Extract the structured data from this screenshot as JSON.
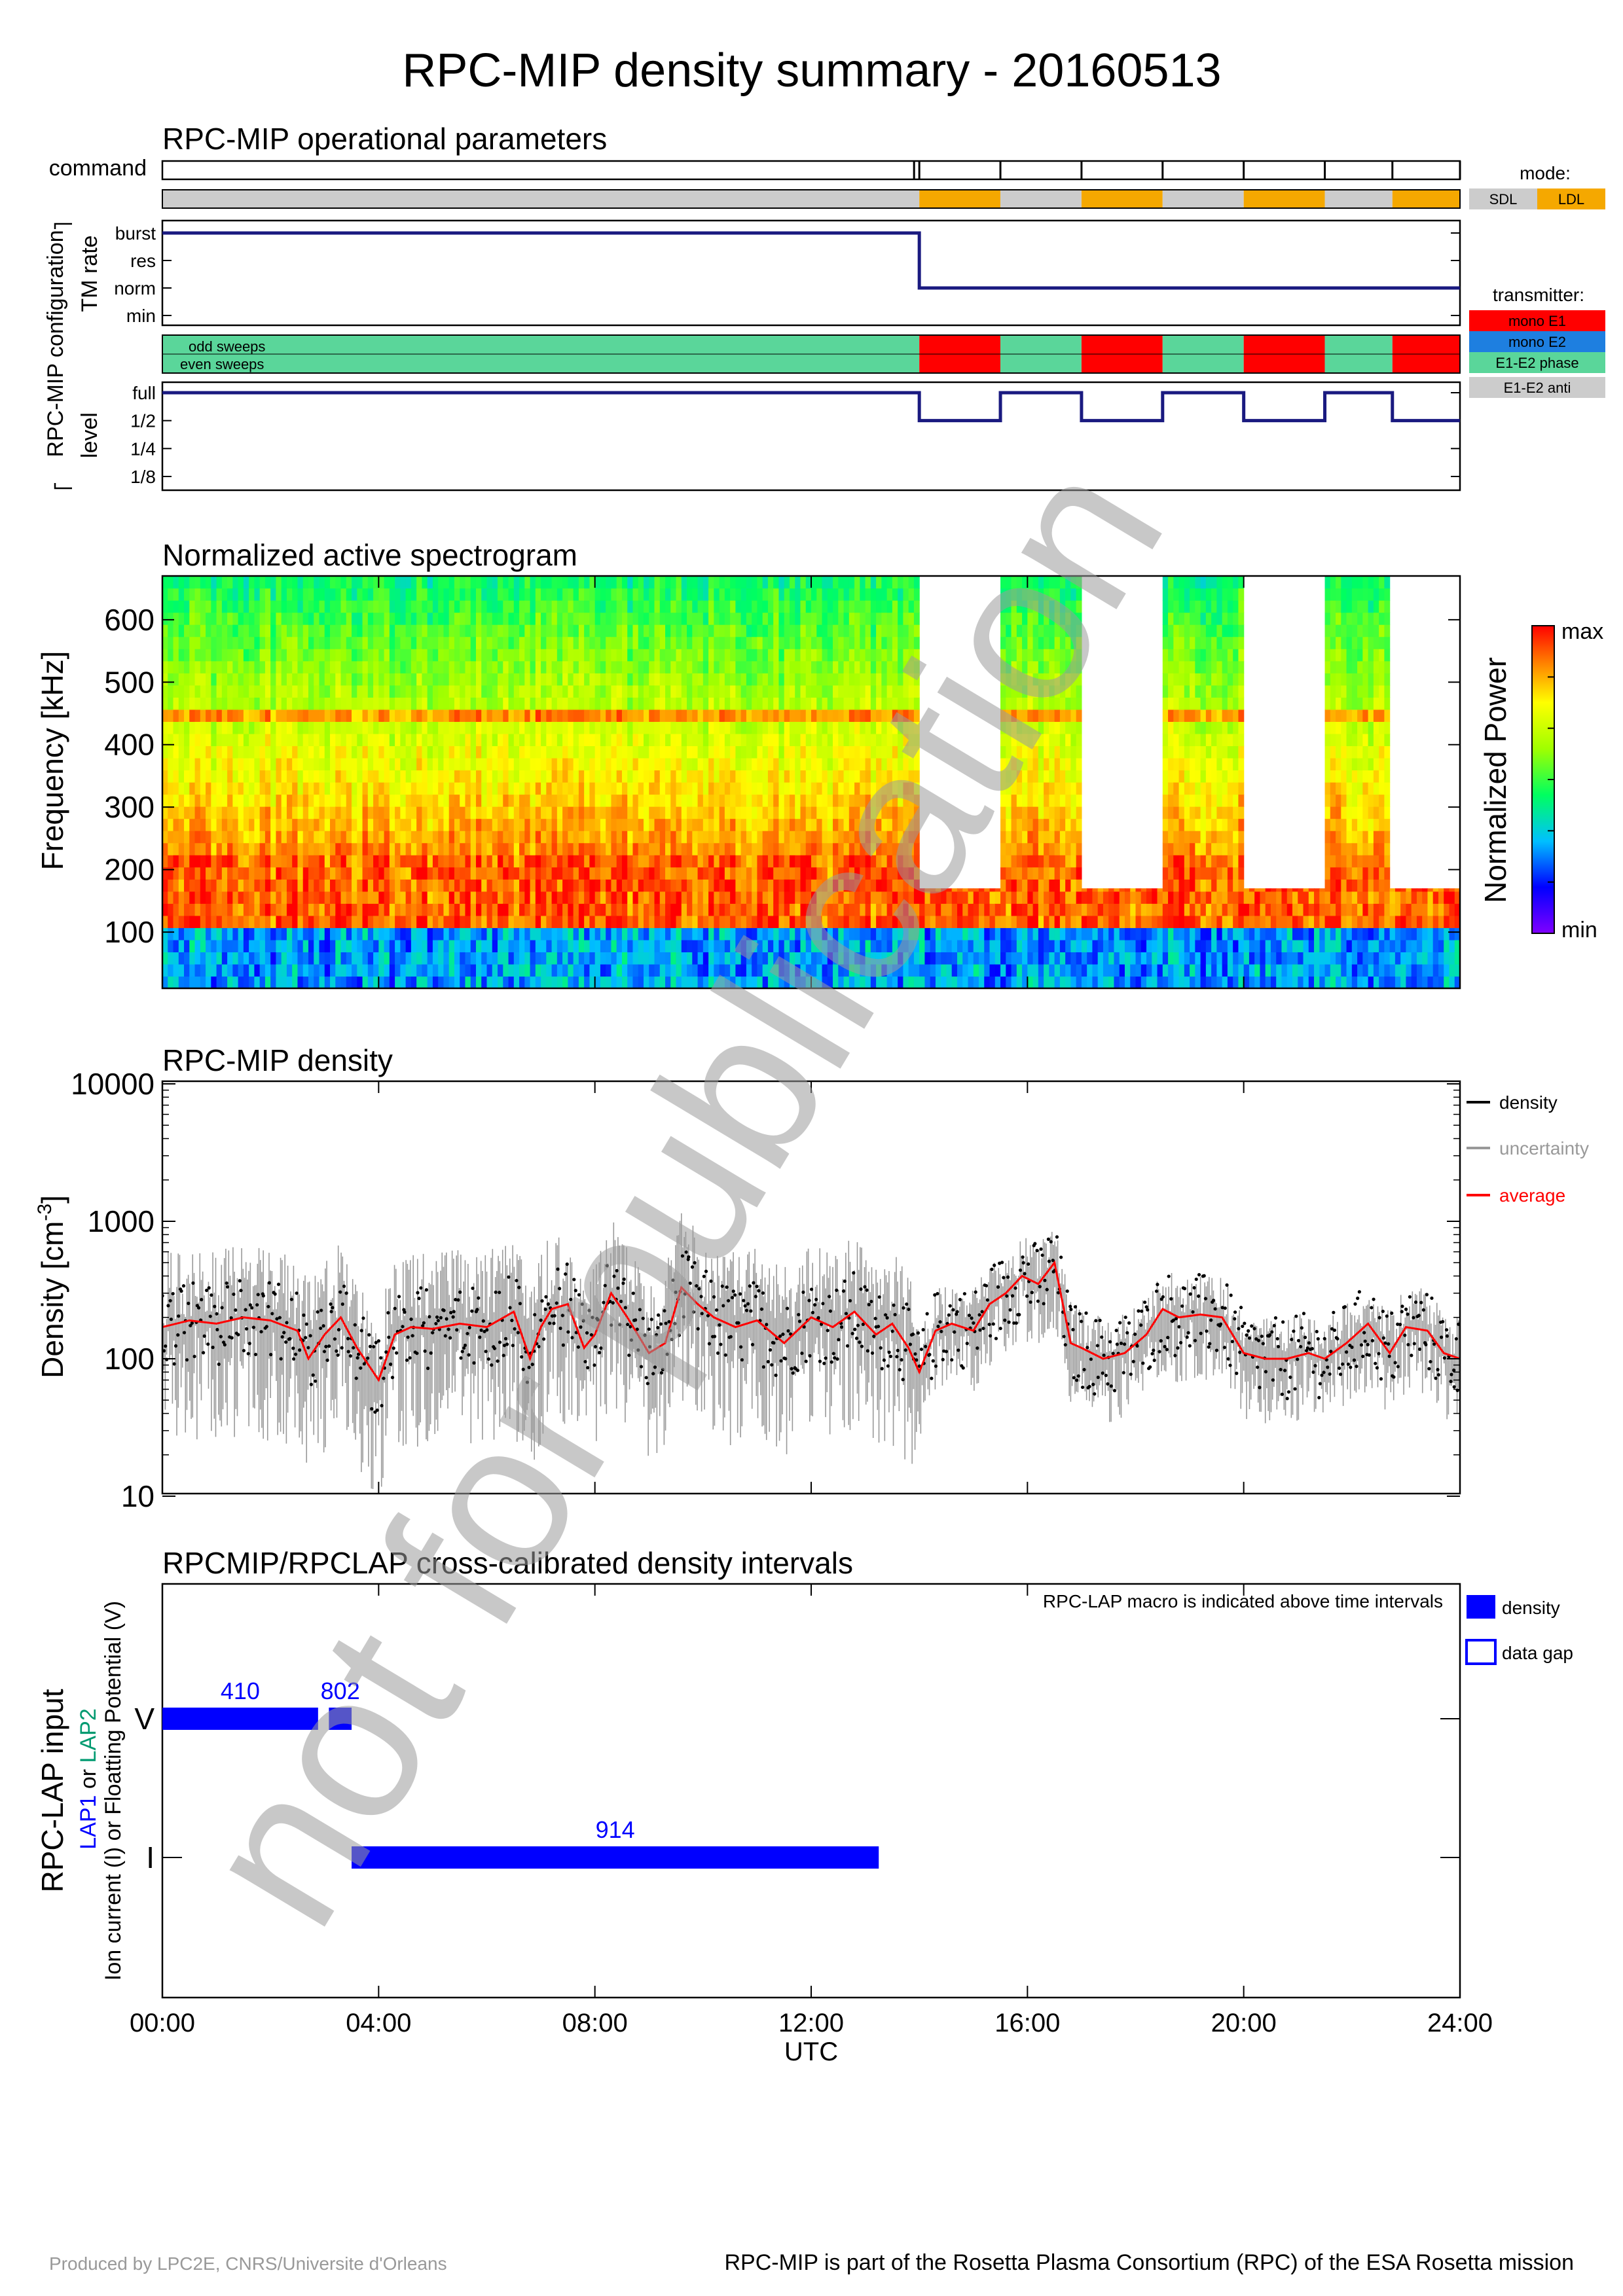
{
  "page_title": "RPC-MIP density summary - 20160513",
  "footer": {
    "left": "Produced by LPC2E, CNRS/Universite d'Orleans",
    "right": "RPC-MIP is part of the Rosetta Plasma Consortium (RPC) of the ESA Rosetta mission"
  },
  "watermark": "not for publication",
  "colors": {
    "navy": "#1a1a80",
    "orange": "#f5a800",
    "gray": "#cccccc",
    "red": "#ff0000",
    "blue": "#0000ff",
    "green": "#5ad69a",
    "lap2": "#009a70"
  },
  "chart_data": [
    {
      "type": "timeline",
      "title": "RPC-MIP operational parameters",
      "group_label": "RPC-MIP configuration",
      "command_label": "command",
      "command_ticks_h": [
        14.0,
        15.5,
        17.0,
        18.5,
        20.0,
        21.5,
        22.75,
        24.0
      ],
      "mode": {
        "legend_title": "mode:",
        "legend": [
          {
            "label": "SDL",
            "color": "#cccccc"
          },
          {
            "label": "LDL",
            "color": "#f5a800"
          }
        ],
        "segments": [
          {
            "start": 0.0,
            "end": 14.0,
            "mode": "SDL"
          },
          {
            "start": 14.0,
            "end": 15.5,
            "mode": "LDL"
          },
          {
            "start": 15.5,
            "end": 17.0,
            "mode": "SDL"
          },
          {
            "start": 17.0,
            "end": 18.5,
            "mode": "LDL"
          },
          {
            "start": 18.5,
            "end": 20.0,
            "mode": "SDL"
          },
          {
            "start": 20.0,
            "end": 21.5,
            "mode": "LDL"
          },
          {
            "start": 21.5,
            "end": 22.75,
            "mode": "SDL"
          },
          {
            "start": 22.75,
            "end": 24.0,
            "mode": "LDL"
          }
        ]
      },
      "tm_rate": {
        "label": "TM rate",
        "levels": [
          "burst",
          "res",
          "norm",
          "min"
        ],
        "steps": [
          {
            "start": 0.0,
            "end": 14.0,
            "level": "burst"
          },
          {
            "start": 14.0,
            "end": 24.0,
            "level": "norm"
          }
        ]
      },
      "transmitter": {
        "legend_title": "transmitter:",
        "legend": [
          {
            "label": "mono E1",
            "color": "#ff0000"
          },
          {
            "label": "mono E2",
            "color": "#1e7fe0"
          },
          {
            "label": "E1-E2 phase",
            "color": "#5ad69a"
          },
          {
            "label": "E1-E2 anti",
            "color": "#cccccc"
          }
        ],
        "rows": [
          "odd sweeps",
          "even sweeps"
        ],
        "segments": [
          {
            "start": 0.0,
            "end": 14.0,
            "tx": "E1-E2 phase"
          },
          {
            "start": 14.0,
            "end": 15.5,
            "tx": "mono E1"
          },
          {
            "start": 15.5,
            "end": 17.0,
            "tx": "E1-E2 phase"
          },
          {
            "start": 17.0,
            "end": 18.5,
            "tx": "mono E1"
          },
          {
            "start": 18.5,
            "end": 20.0,
            "tx": "E1-E2 phase"
          },
          {
            "start": 20.0,
            "end": 21.5,
            "tx": "mono E1"
          },
          {
            "start": 21.5,
            "end": 22.75,
            "tx": "E1-E2 phase"
          },
          {
            "start": 22.75,
            "end": 24.0,
            "tx": "mono E1"
          }
        ]
      },
      "level": {
        "label": "level",
        "levels": [
          "full",
          "1/2",
          "1/4",
          "1/8"
        ],
        "steps": [
          {
            "start": 0.0,
            "end": 14.0,
            "level": "full"
          },
          {
            "start": 14.0,
            "end": 15.5,
            "level": "1/2"
          },
          {
            "start": 15.5,
            "end": 17.0,
            "level": "full"
          },
          {
            "start": 17.0,
            "end": 18.5,
            "level": "1/2"
          },
          {
            "start": 18.5,
            "end": 20.0,
            "level": "full"
          },
          {
            "start": 20.0,
            "end": 21.5,
            "level": "1/2"
          },
          {
            "start": 21.5,
            "end": 22.75,
            "level": "full"
          },
          {
            "start": 22.75,
            "end": 24.0,
            "level": "1/2"
          }
        ]
      }
    },
    {
      "type": "heatmap",
      "title": "Normalized active spectrogram",
      "ylabel": "Frequency [kHz]",
      "ylim": [
        10,
        670
      ],
      "yticks": [
        100,
        200,
        300,
        400,
        500,
        600
      ],
      "colorbar_label": "Normalized Power",
      "colorbar_max": "max",
      "colorbar_min": "min",
      "x_ticks_h": [
        0,
        4,
        8,
        12,
        16,
        20,
        24
      ],
      "coverage": [
        {
          "start": 0.0,
          "end": 14.0,
          "fmax": 670
        },
        {
          "start": 14.0,
          "end": 15.5,
          "fmax": 170
        },
        {
          "start": 15.5,
          "end": 17.0,
          "fmax": 670
        },
        {
          "start": 17.0,
          "end": 18.5,
          "fmax": 170
        },
        {
          "start": 18.5,
          "end": 20.0,
          "fmax": 670
        },
        {
          "start": 20.0,
          "end": 21.5,
          "fmax": 170
        },
        {
          "start": 21.5,
          "end": 22.75,
          "fmax": 670
        },
        {
          "start": 22.75,
          "end": 24.0,
          "fmax": 170
        }
      ],
      "bands_khz": {
        "high_power": [
          110,
          230
        ],
        "low_power": [
          30,
          110
        ],
        "line": 445
      }
    },
    {
      "type": "scatter",
      "title": "RPC-MIP density",
      "ylabel": "Density [cm",
      "ylabel_sup": "-3",
      "ylabel_end": "]",
      "ylog": true,
      "ylim": [
        10,
        10000
      ],
      "yticks": [
        10,
        100,
        1000,
        10000
      ],
      "x_ticks_h": [
        0,
        4,
        8,
        12,
        16,
        20,
        24
      ],
      "legend": [
        {
          "label": "density",
          "color": "#000000"
        },
        {
          "label": "uncertainty",
          "color": "#999999"
        },
        {
          "label": "average",
          "color": "#ff0000"
        }
      ],
      "series": [
        {
          "name": "average",
          "x_h": [
            0.0,
            0.5,
            1.0,
            1.5,
            2.0,
            2.5,
            2.7,
            3.0,
            3.3,
            3.6,
            4.0,
            4.3,
            4.6,
            5.0,
            5.5,
            6.0,
            6.5,
            6.8,
            7.0,
            7.2,
            7.5,
            7.8,
            8.0,
            8.3,
            8.6,
            9.0,
            9.3,
            9.6,
            9.9,
            10.2,
            10.6,
            11.0,
            11.5,
            12.0,
            12.4,
            12.8,
            13.2,
            13.5,
            13.8,
            14.0,
            14.3,
            14.6,
            15.0,
            15.3,
            15.6,
            15.9,
            16.2,
            16.5,
            16.8,
            17.0,
            17.4,
            17.8,
            18.2,
            18.5,
            18.8,
            19.2,
            19.6,
            20.0,
            20.4,
            20.8,
            21.2,
            21.5,
            21.9,
            22.3,
            22.7,
            23.0,
            23.4,
            23.7,
            24.0
          ],
          "y": [
            170,
            190,
            180,
            200,
            190,
            160,
            100,
            150,
            200,
            120,
            70,
            150,
            170,
            165,
            180,
            170,
            220,
            100,
            170,
            230,
            250,
            120,
            150,
            300,
            200,
            110,
            130,
            330,
            250,
            200,
            170,
            190,
            130,
            200,
            170,
            220,
            150,
            180,
            120,
            80,
            160,
            180,
            160,
            250,
            300,
            400,
            350,
            500,
            130,
            120,
            100,
            110,
            150,
            230,
            200,
            210,
            200,
            110,
            100,
            100,
            110,
            100,
            130,
            180,
            110,
            170,
            160,
            110,
            100
          ]
        }
      ]
    },
    {
      "type": "gantt",
      "title": "RPCMIP/RPCLAP cross-calibrated density intervals",
      "ylabel": "RPC-LAP input",
      "ylabel2_parts": [
        "LAP1",
        " or ",
        "LAP2"
      ],
      "ylabel3": "Ion current (I) or Floatting Potential (V)",
      "note": "RPC-LAP macro is indicated above time intervals",
      "rows": [
        "V",
        "I"
      ],
      "legend": [
        {
          "label": "density",
          "filled": true
        },
        {
          "label": "data gap",
          "filled": false
        }
      ],
      "x_ticks_h": [
        0,
        4,
        8,
        12,
        16,
        20,
        24
      ],
      "x_ticks_labels": [
        "00:00",
        "04:00",
        "08:00",
        "12:00",
        "16:00",
        "20:00",
        "24:00"
      ],
      "xlabel": "UTC",
      "intervals": [
        {
          "row": "V",
          "start": 0.0,
          "end": 2.88,
          "macro": "410"
        },
        {
          "row": "V",
          "start": 3.08,
          "end": 3.5,
          "macro": "802"
        },
        {
          "row": "I",
          "start": 3.5,
          "end": 13.25,
          "macro": "914"
        }
      ]
    }
  ]
}
